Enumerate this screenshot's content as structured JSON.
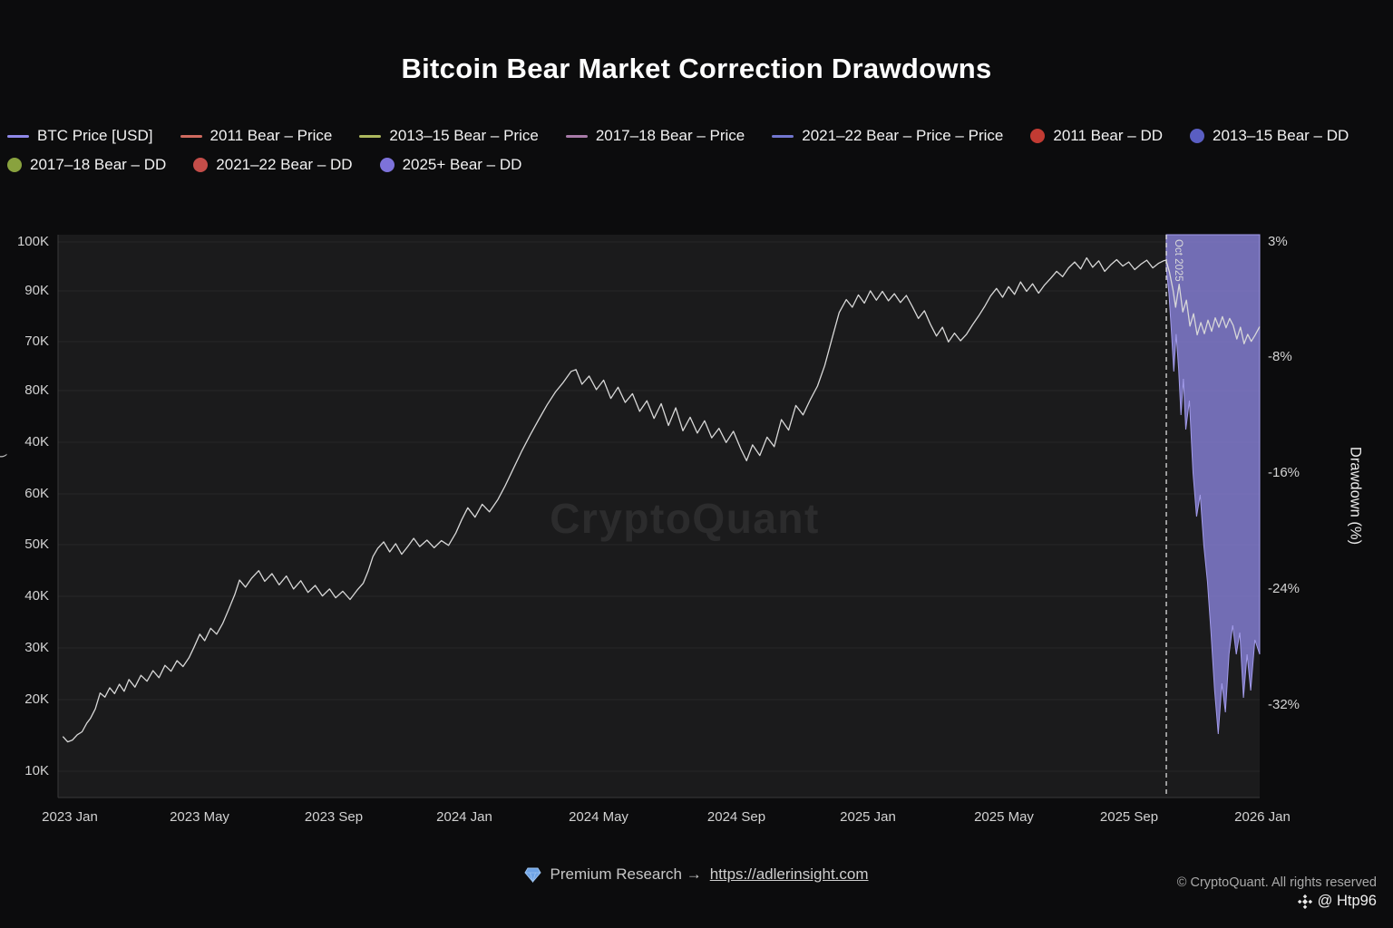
{
  "title": "Bitcoin Bear Market Correction Drawdowns",
  "legend": [
    {
      "label": "BTC Price  [USD]",
      "type": "line",
      "color": "#8f88e8"
    },
    {
      "label": "2011 Bear – Price",
      "type": "line",
      "color": "#cf6a5f"
    },
    {
      "label": "2013–15 Bear – Price",
      "type": "line",
      "color": "#adb85e"
    },
    {
      "label": "2017–18 Bear – Price",
      "type": "line",
      "color": "#a87ba8"
    },
    {
      "label": "2021–22 Bear – Price – Price",
      "type": "line",
      "color": "#7276cf"
    },
    {
      "label": "2011 Bear – DD",
      "type": "dot",
      "color": "#c23b33"
    },
    {
      "label": "2013–15 Bear – DD",
      "type": "dot",
      "color": "#5a5ec2"
    },
    {
      "label": "2017–18 Bear – DD",
      "type": "dot",
      "color": "#89a23e"
    },
    {
      "label": "2021–22 Bear – DD",
      "type": "dot",
      "color": "#c44d49"
    },
    {
      "label": "2025+ Bear – DD",
      "type": "dot",
      "color": "#7d72da"
    }
  ],
  "chart_data": {
    "type": "line",
    "title": "Bitcoin Bear Market Correction Drawdowns",
    "watermark": "CryptoQuant",
    "x_ticks": [
      "2023 Jan",
      "2023 May",
      "2023 Sep",
      "2024 Jan",
      "2024 May",
      "2024 Sep",
      "2025 Jan",
      "2025 May",
      "2025 Sep",
      "2026 Jan"
    ],
    "y_left_ticks": [
      "100K",
      "90K",
      "70K",
      "80K",
      "40K",
      "60K",
      "50K",
      "40K",
      "30K",
      "20K",
      "10K"
    ],
    "y_right_ticks": [
      "3%",
      "-8%",
      "-16%",
      "-24%",
      "-32%"
    ],
    "left_axis_label": "(",
    "right_axis_label": "Drawdown (%)",
    "y_left_range_k": [
      10,
      100
    ],
    "y_right_range_pct": [
      3,
      -32
    ],
    "grid": true,
    "annotation": {
      "label": "Oct 2025",
      "x_frac": 0.9223
    },
    "series": [
      {
        "name": "BTC Price [USD]",
        "type": "line",
        "color": "#d8d8d8",
        "unit": "K USD",
        "points": [
          [
            0.004,
            15.9
          ],
          [
            0.008,
            15.0
          ],
          [
            0.012,
            15.3
          ],
          [
            0.016,
            16.2
          ],
          [
            0.02,
            16.7
          ],
          [
            0.024,
            18.2
          ],
          [
            0.027,
            19.0
          ],
          [
            0.031,
            20.6
          ],
          [
            0.035,
            23.3
          ],
          [
            0.039,
            22.6
          ],
          [
            0.043,
            24.2
          ],
          [
            0.047,
            23.2
          ],
          [
            0.051,
            24.8
          ],
          [
            0.055,
            23.6
          ],
          [
            0.059,
            25.6
          ],
          [
            0.064,
            24.3
          ],
          [
            0.069,
            26.3
          ],
          [
            0.074,
            25.3
          ],
          [
            0.079,
            27.1
          ],
          [
            0.084,
            25.9
          ],
          [
            0.089,
            28.0
          ],
          [
            0.094,
            27.0
          ],
          [
            0.099,
            28.8
          ],
          [
            0.104,
            27.8
          ],
          [
            0.109,
            29.3
          ],
          [
            0.113,
            31.0
          ],
          [
            0.118,
            33.3
          ],
          [
            0.122,
            32.2
          ],
          [
            0.127,
            34.3
          ],
          [
            0.132,
            33.3
          ],
          [
            0.137,
            35.1
          ],
          [
            0.142,
            37.5
          ],
          [
            0.147,
            40.0
          ],
          [
            0.151,
            42.5
          ],
          [
            0.156,
            41.3
          ],
          [
            0.161,
            42.8
          ],
          [
            0.167,
            44.1
          ],
          [
            0.172,
            42.3
          ],
          [
            0.178,
            43.6
          ],
          [
            0.184,
            41.7
          ],
          [
            0.19,
            43.2
          ],
          [
            0.196,
            41.0
          ],
          [
            0.202,
            42.4
          ],
          [
            0.208,
            40.4
          ],
          [
            0.214,
            41.6
          ],
          [
            0.22,
            39.8
          ],
          [
            0.226,
            41.0
          ],
          [
            0.231,
            39.5
          ],
          [
            0.237,
            40.6
          ],
          [
            0.243,
            39.2
          ],
          [
            0.249,
            40.8
          ],
          [
            0.254,
            42.0
          ],
          [
            0.258,
            44.0
          ],
          [
            0.262,
            46.5
          ],
          [
            0.266,
            47.9
          ],
          [
            0.271,
            49.0
          ],
          [
            0.276,
            47.3
          ],
          [
            0.281,
            48.7
          ],
          [
            0.286,
            46.9
          ],
          [
            0.291,
            48.2
          ],
          [
            0.296,
            49.6
          ],
          [
            0.301,
            48.2
          ],
          [
            0.307,
            49.3
          ],
          [
            0.313,
            48.0
          ],
          [
            0.319,
            49.2
          ],
          [
            0.325,
            48.4
          ],
          [
            0.331,
            50.5
          ],
          [
            0.336,
            52.8
          ],
          [
            0.341,
            54.8
          ],
          [
            0.347,
            53.2
          ],
          [
            0.353,
            55.4
          ],
          [
            0.359,
            54.1
          ],
          [
            0.366,
            56.2
          ],
          [
            0.372,
            58.5
          ],
          [
            0.379,
            61.5
          ],
          [
            0.386,
            64.5
          ],
          [
            0.393,
            67.2
          ],
          [
            0.4,
            69.8
          ],
          [
            0.407,
            72.3
          ],
          [
            0.414,
            74.5
          ],
          [
            0.42,
            76.0
          ],
          [
            0.427,
            78.0
          ],
          [
            0.431,
            78.3
          ],
          [
            0.436,
            75.8
          ],
          [
            0.442,
            77.2
          ],
          [
            0.448,
            74.9
          ],
          [
            0.454,
            76.5
          ],
          [
            0.46,
            73.4
          ],
          [
            0.466,
            75.3
          ],
          [
            0.472,
            72.7
          ],
          [
            0.478,
            74.2
          ],
          [
            0.484,
            71.2
          ],
          [
            0.49,
            73.0
          ],
          [
            0.496,
            70.0
          ],
          [
            0.502,
            72.5
          ],
          [
            0.508,
            68.8
          ],
          [
            0.514,
            71.8
          ],
          [
            0.52,
            67.9
          ],
          [
            0.526,
            70.2
          ],
          [
            0.532,
            67.5
          ],
          [
            0.538,
            69.6
          ],
          [
            0.544,
            66.7
          ],
          [
            0.55,
            68.3
          ],
          [
            0.556,
            65.9
          ],
          [
            0.562,
            67.8
          ],
          [
            0.568,
            64.9
          ],
          [
            0.573,
            62.8
          ],
          [
            0.578,
            65.5
          ],
          [
            0.584,
            63.7
          ],
          [
            0.59,
            66.8
          ],
          [
            0.596,
            65.2
          ],
          [
            0.602,
            69.8
          ],
          [
            0.608,
            68.0
          ],
          [
            0.614,
            72.2
          ],
          [
            0.62,
            70.6
          ],
          [
            0.626,
            73.2
          ],
          [
            0.632,
            75.5
          ],
          [
            0.638,
            79.0
          ],
          [
            0.644,
            83.5
          ],
          [
            0.65,
            88.0
          ],
          [
            0.656,
            90.2
          ],
          [
            0.661,
            88.9
          ],
          [
            0.666,
            91.0
          ],
          [
            0.671,
            89.6
          ],
          [
            0.676,
            91.7
          ],
          [
            0.681,
            90.1
          ],
          [
            0.686,
            91.6
          ],
          [
            0.691,
            90.0
          ],
          [
            0.696,
            91.2
          ],
          [
            0.701,
            89.7
          ],
          [
            0.706,
            90.9
          ],
          [
            0.711,
            89.0
          ],
          [
            0.716,
            87.0
          ],
          [
            0.721,
            88.3
          ],
          [
            0.726,
            86.0
          ],
          [
            0.731,
            84.0
          ],
          [
            0.736,
            85.5
          ],
          [
            0.741,
            83.0
          ],
          [
            0.746,
            84.5
          ],
          [
            0.751,
            83.2
          ],
          [
            0.756,
            84.3
          ],
          [
            0.761,
            85.9
          ],
          [
            0.766,
            87.4
          ],
          [
            0.771,
            89.0
          ],
          [
            0.776,
            90.8
          ],
          [
            0.781,
            92.1
          ],
          [
            0.786,
            90.6
          ],
          [
            0.791,
            92.4
          ],
          [
            0.796,
            91.1
          ],
          [
            0.801,
            93.2
          ],
          [
            0.806,
            91.6
          ],
          [
            0.811,
            92.9
          ],
          [
            0.816,
            91.3
          ],
          [
            0.821,
            92.7
          ],
          [
            0.826,
            93.8
          ],
          [
            0.831,
            95.0
          ],
          [
            0.836,
            94.1
          ],
          [
            0.841,
            95.6
          ],
          [
            0.846,
            96.6
          ],
          [
            0.851,
            95.4
          ],
          [
            0.856,
            97.3
          ],
          [
            0.861,
            95.7
          ],
          [
            0.866,
            96.8
          ],
          [
            0.871,
            95.0
          ],
          [
            0.876,
            96.1
          ],
          [
            0.881,
            97.0
          ],
          [
            0.886,
            95.9
          ],
          [
            0.891,
            96.6
          ],
          [
            0.896,
            95.3
          ],
          [
            0.901,
            96.2
          ],
          [
            0.906,
            96.9
          ],
          [
            0.911,
            95.6
          ],
          [
            0.916,
            96.4
          ],
          [
            0.92,
            96.8
          ],
          [
            0.922,
            96.9
          ],
          [
            0.925,
            94.8
          ],
          [
            0.928,
            91.7
          ],
          [
            0.93,
            88.9
          ],
          [
            0.933,
            92.8
          ],
          [
            0.936,
            88.1
          ],
          [
            0.939,
            90.1
          ],
          [
            0.942,
            85.7
          ],
          [
            0.945,
            87.8
          ],
          [
            0.948,
            84.2
          ],
          [
            0.951,
            86.3
          ],
          [
            0.954,
            84.4
          ],
          [
            0.957,
            86.7
          ],
          [
            0.96,
            84.8
          ],
          [
            0.963,
            87.1
          ],
          [
            0.966,
            85.5
          ],
          [
            0.969,
            87.3
          ],
          [
            0.972,
            85.4
          ],
          [
            0.975,
            87.0
          ],
          [
            0.978,
            85.8
          ],
          [
            0.981,
            83.5
          ],
          [
            0.984,
            85.5
          ],
          [
            0.987,
            82.7
          ],
          [
            0.99,
            84.3
          ],
          [
            0.993,
            83.1
          ],
          [
            0.996,
            84.1
          ],
          [
            1.0,
            85.6
          ]
        ]
      },
      {
        "name": "2025+ Bear – DD",
        "type": "area",
        "color": "#8680d5",
        "unit": "%",
        "points": [
          [
            0.9223,
            0.5
          ],
          [
            0.9245,
            -2.0
          ],
          [
            0.9265,
            -5.5
          ],
          [
            0.9285,
            -9.0
          ],
          [
            0.9305,
            -5.8
          ],
          [
            0.9325,
            -8.8
          ],
          [
            0.9345,
            -12.0
          ],
          [
            0.9365,
            -9.5
          ],
          [
            0.9385,
            -13.0
          ],
          [
            0.9415,
            -11.0
          ],
          [
            0.9445,
            -16.0
          ],
          [
            0.9475,
            -19.0
          ],
          [
            0.9505,
            -17.5
          ],
          [
            0.9535,
            -21.0
          ],
          [
            0.9565,
            -23.5
          ],
          [
            0.9595,
            -27.0
          ],
          [
            0.9625,
            -31.0
          ],
          [
            0.9655,
            -34.0
          ],
          [
            0.9685,
            -30.5
          ],
          [
            0.9715,
            -32.5
          ],
          [
            0.9745,
            -28.5
          ],
          [
            0.9775,
            -26.5
          ],
          [
            0.9805,
            -28.5
          ],
          [
            0.9835,
            -27.0
          ],
          [
            0.9865,
            -31.5
          ],
          [
            0.9895,
            -28.5
          ],
          [
            0.9925,
            -31.0
          ],
          [
            0.996,
            -27.5
          ],
          [
            1.0,
            -28.5
          ]
        ]
      }
    ]
  },
  "footer": {
    "premium_text": "Premium Research →",
    "link": "https://adlerinsight.com",
    "copyright": "© CryptoQuant. All rights reserved",
    "handle": "@ Htp96"
  }
}
